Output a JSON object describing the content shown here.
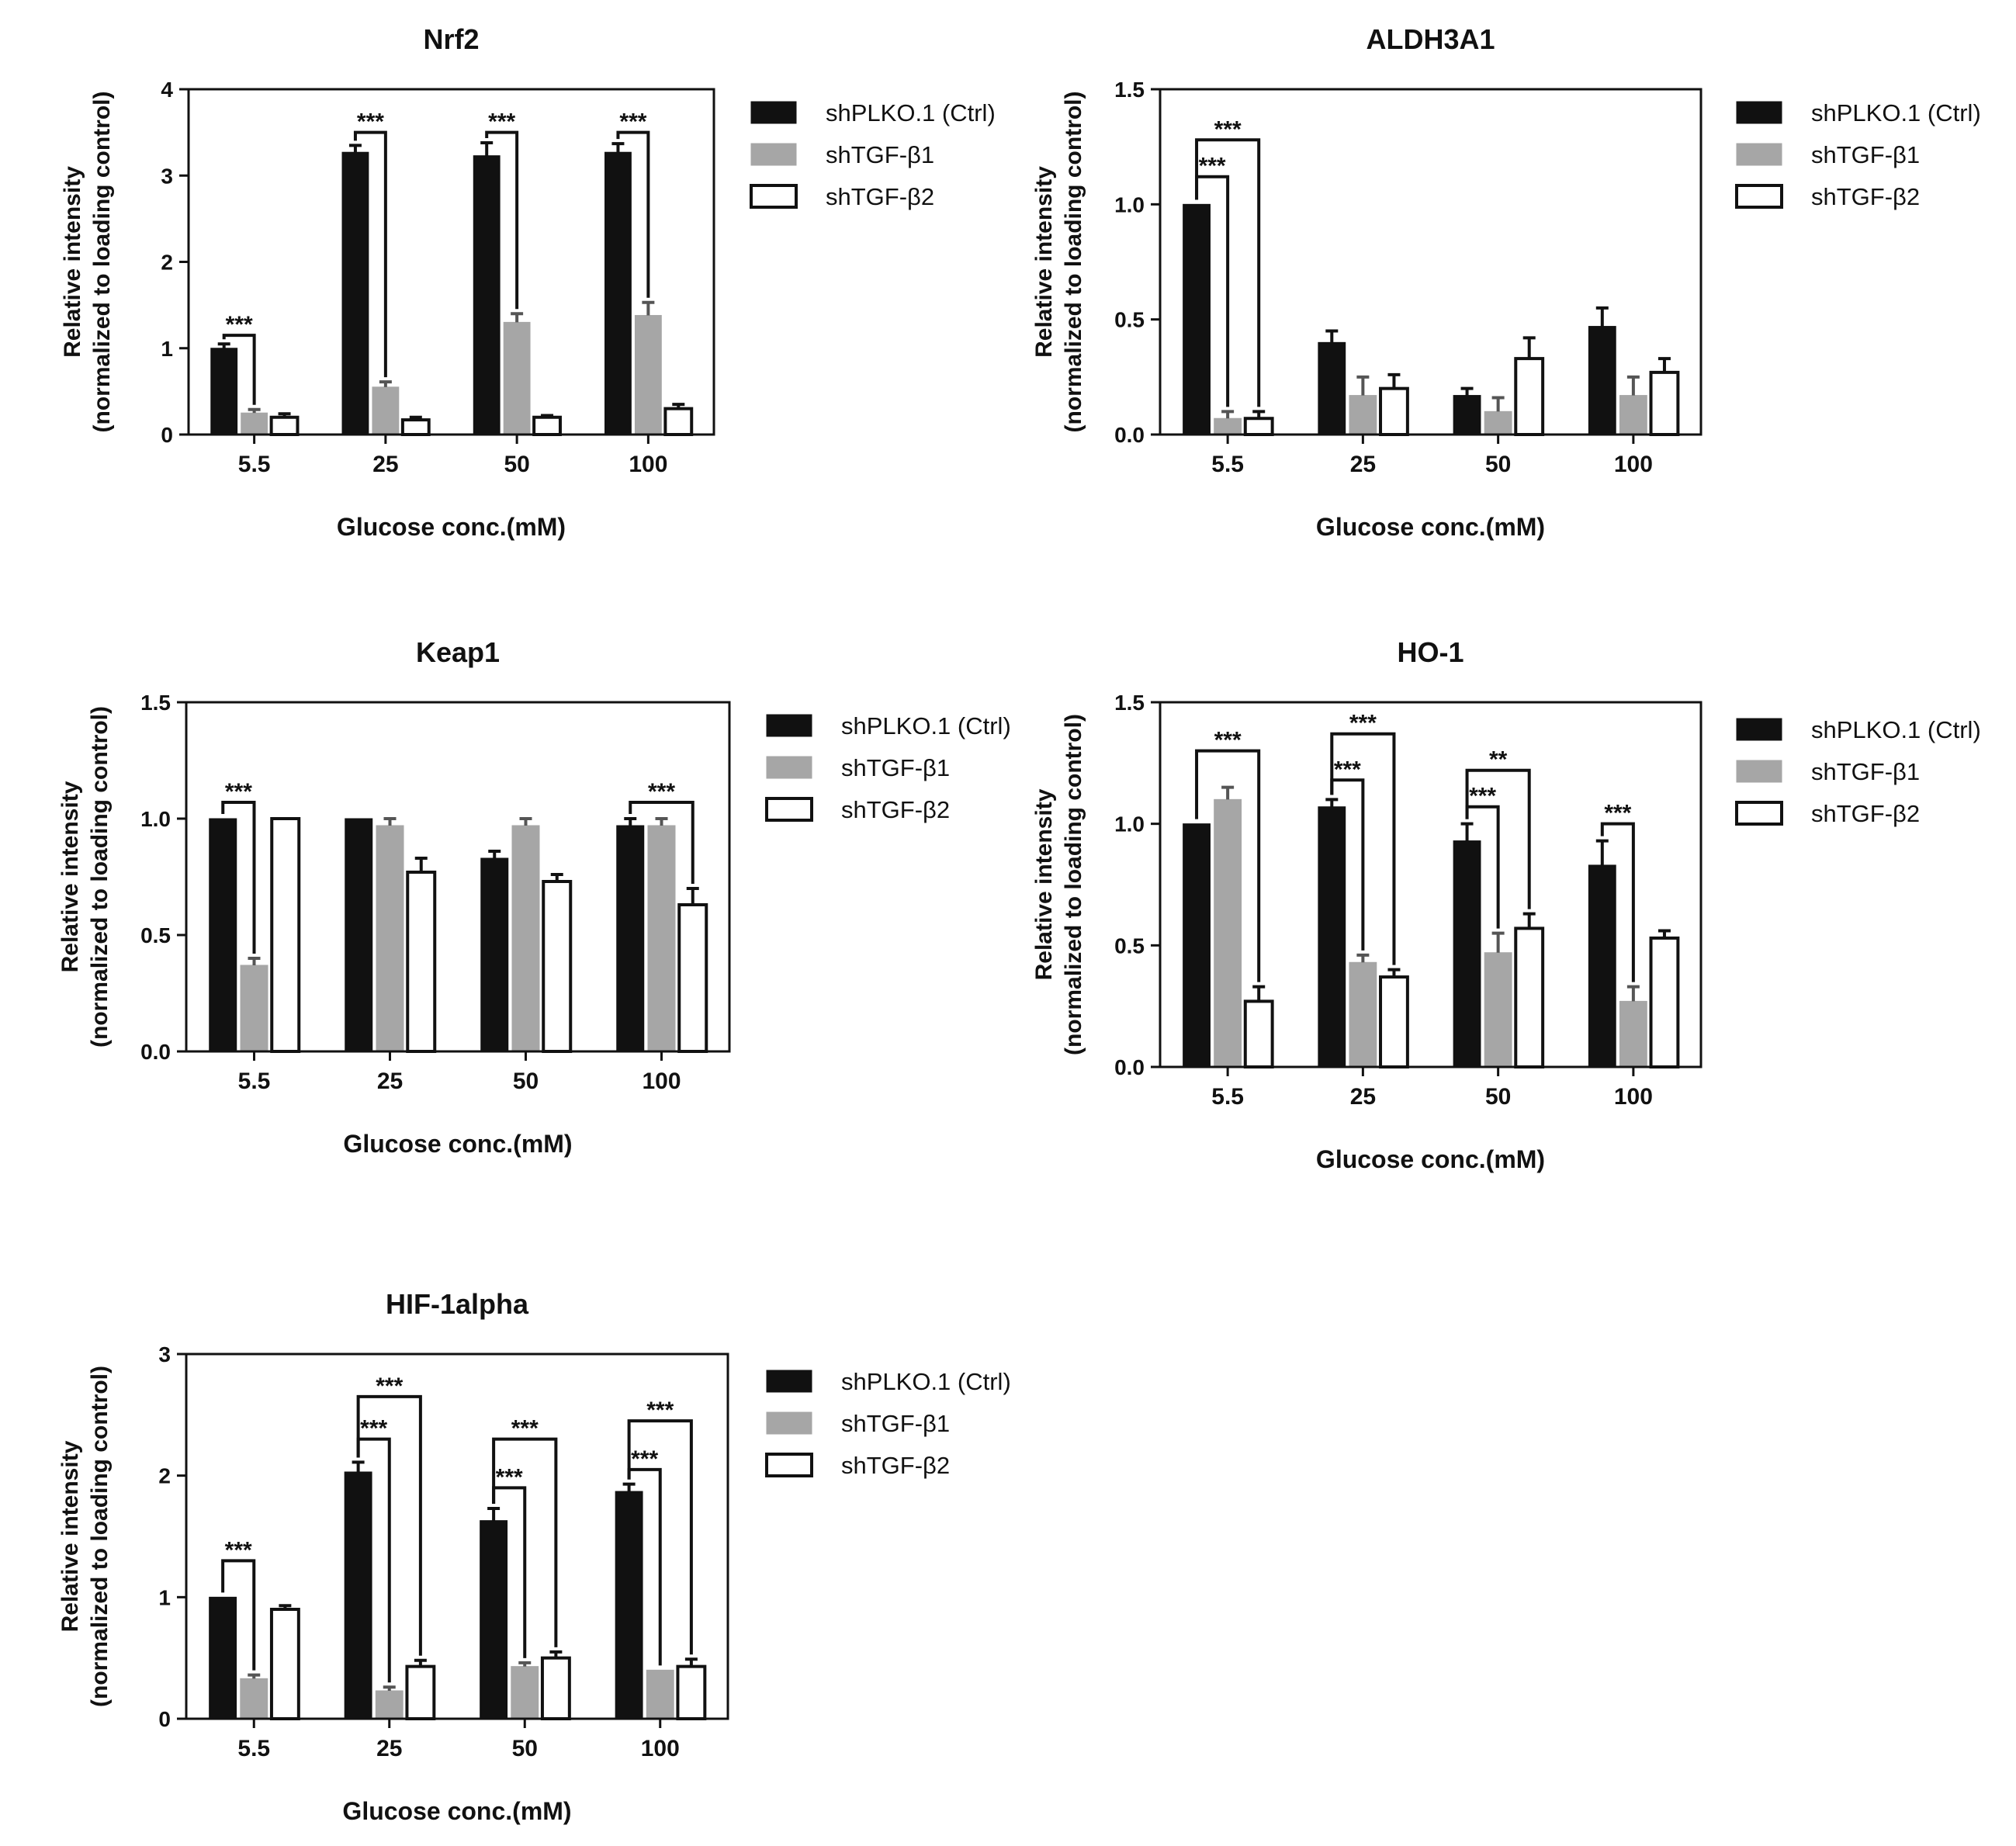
{
  "figure": {
    "x_label": "Glucose conc.(mM)",
    "y_label_line1": "Relative intensity",
    "y_label_line2": "(normalized to loading control)",
    "legend": [
      "shPLKO.1 (Ctrl)",
      "shTGF-β1",
      "shTGF-β2"
    ],
    "colors": {
      "ctrl": "#111111",
      "tgfb1": "#a6a6a6",
      "tgfb2": "#ffffff",
      "outline": "#111111"
    }
  },
  "chart_data": [
    {
      "type": "bar",
      "title": "Nrf2",
      "categories": [
        "5.5",
        "25",
        "50",
        "100"
      ],
      "xlabel": "Glucose conc.(mM)",
      "ylabel": "Relative intensity (normalized to loading control)",
      "ylim": [
        0,
        4
      ],
      "yticks": [
        "0",
        "1",
        "2",
        "3",
        "4"
      ],
      "series": [
        {
          "name": "shPLKO.1 (Ctrl)",
          "values": [
            1.0,
            3.27,
            3.23,
            3.27
          ],
          "errors": [
            0.05,
            0.08,
            0.15,
            0.1
          ]
        },
        {
          "name": "shTGF-β1",
          "values": [
            0.25,
            0.55,
            1.3,
            1.38
          ],
          "errors": [
            0.04,
            0.06,
            0.1,
            0.15
          ]
        },
        {
          "name": "shTGF-β2",
          "values": [
            0.2,
            0.17,
            0.2,
            0.3
          ],
          "errors": [
            0.04,
            0.03,
            0.02,
            0.05
          ]
        }
      ],
      "significance": [
        {
          "group": 0,
          "from": 0,
          "to": 1,
          "label": "***",
          "level": 1.15
        },
        {
          "group": 1,
          "from": 0,
          "to": 1,
          "label": "***",
          "level": 3.5
        },
        {
          "group": 2,
          "from": 0,
          "to": 1,
          "label": "***",
          "level": 3.5
        },
        {
          "group": 3,
          "from": 0,
          "to": 1,
          "label": "***",
          "level": 3.5
        }
      ]
    },
    {
      "type": "bar",
      "title": "ALDH3A1",
      "categories": [
        "5.5",
        "25",
        "50",
        "100"
      ],
      "xlabel": "Glucose conc.(mM)",
      "ylabel": "Relative intensity (normalized to loading control)",
      "ylim": [
        0,
        1.5
      ],
      "yticks": [
        "0.0",
        "0.5",
        "1.0",
        "1.5"
      ],
      "series": [
        {
          "name": "shPLKO.1 (Ctrl)",
          "values": [
            1.0,
            0.4,
            0.17,
            0.47
          ],
          "errors": [
            0.0,
            0.05,
            0.03,
            0.08
          ]
        },
        {
          "name": "shTGF-β1",
          "values": [
            0.07,
            0.17,
            0.1,
            0.17
          ],
          "errors": [
            0.03,
            0.08,
            0.06,
            0.08
          ]
        },
        {
          "name": "shTGF-β2",
          "values": [
            0.07,
            0.2,
            0.33,
            0.27
          ],
          "errors": [
            0.03,
            0.06,
            0.09,
            0.06
          ]
        }
      ],
      "significance": [
        {
          "group": 0,
          "from": 0,
          "to": 1,
          "label": "***",
          "level": 1.12
        },
        {
          "group": 0,
          "from": 0,
          "to": 2,
          "label": "***",
          "level": 1.28
        }
      ]
    },
    {
      "type": "bar",
      "title": "Keap1",
      "categories": [
        "5.5",
        "25",
        "50",
        "100"
      ],
      "xlabel": "Glucose conc.(mM)",
      "ylabel": "Relative intensity (normalized to loading control)",
      "ylim": [
        0,
        1.5
      ],
      "yticks": [
        "0.0",
        "0.5",
        "1.0",
        "1.5"
      ],
      "series": [
        {
          "name": "shPLKO.1 (Ctrl)",
          "values": [
            1.0,
            1.0,
            0.83,
            0.97
          ],
          "errors": [
            0.0,
            0.0,
            0.03,
            0.03
          ]
        },
        {
          "name": "shTGF-β1",
          "values": [
            0.37,
            0.97,
            0.97,
            0.97
          ],
          "errors": [
            0.03,
            0.03,
            0.03,
            0.03
          ]
        },
        {
          "name": "shTGF-β2",
          "values": [
            1.0,
            0.77,
            0.73,
            0.63
          ],
          "errors": [
            0.0,
            0.06,
            0.03,
            0.07
          ]
        }
      ],
      "significance": [
        {
          "group": 0,
          "from": 0,
          "to": 1,
          "label": "***",
          "level": 1.07
        },
        {
          "group": 3,
          "from": 0,
          "to": 2,
          "label": "***",
          "level": 1.07
        }
      ]
    },
    {
      "type": "bar",
      "title": "HO-1",
      "categories": [
        "5.5",
        "25",
        "50",
        "100"
      ],
      "xlabel": "Glucose conc.(mM)",
      "ylabel": "Relative intensity (normalized to loading control)",
      "ylim": [
        0,
        1.5
      ],
      "yticks": [
        "0.0",
        "0.5",
        "1.0",
        "1.5"
      ],
      "series": [
        {
          "name": "shPLKO.1 (Ctrl)",
          "values": [
            1.0,
            1.07,
            0.93,
            0.83
          ],
          "errors": [
            0.0,
            0.03,
            0.07,
            0.1
          ]
        },
        {
          "name": "shTGF-β1",
          "values": [
            1.1,
            0.43,
            0.47,
            0.27
          ],
          "errors": [
            0.05,
            0.03,
            0.08,
            0.06
          ]
        },
        {
          "name": "shTGF-β2",
          "values": [
            0.27,
            0.37,
            0.57,
            0.53
          ],
          "errors": [
            0.06,
            0.03,
            0.06,
            0.03
          ]
        }
      ],
      "significance": [
        {
          "group": 0,
          "from": 0,
          "to": 2,
          "label": "***",
          "level": 1.3
        },
        {
          "group": 1,
          "from": 0,
          "to": 1,
          "label": "***",
          "level": 1.18
        },
        {
          "group": 1,
          "from": 0,
          "to": 2,
          "label": "***",
          "level": 1.37
        },
        {
          "group": 2,
          "from": 0,
          "to": 1,
          "label": "***",
          "level": 1.07
        },
        {
          "group": 2,
          "from": 0,
          "to": 2,
          "label": "**",
          "level": 1.22
        },
        {
          "group": 3,
          "from": 0,
          "to": 1,
          "label": "***",
          "level": 1.0
        }
      ]
    },
    {
      "type": "bar",
      "title": "HIF-1alpha",
      "categories": [
        "5.5",
        "25",
        "50",
        "100"
      ],
      "xlabel": "Glucose conc.(mM)",
      "ylabel": "Relative intensity (normalized to loading control)",
      "ylim": [
        0,
        3
      ],
      "yticks": [
        "0",
        "1",
        "2",
        "3"
      ],
      "series": [
        {
          "name": "shPLKO.1 (Ctrl)",
          "values": [
            1.0,
            2.03,
            1.63,
            1.87
          ],
          "errors": [
            0.0,
            0.08,
            0.1,
            0.06
          ]
        },
        {
          "name": "shTGF-β1",
          "values": [
            0.33,
            0.23,
            0.43,
            0.4
          ],
          "errors": [
            0.03,
            0.03,
            0.03,
            0.0
          ]
        },
        {
          "name": "shTGF-β2",
          "values": [
            0.9,
            0.43,
            0.5,
            0.43
          ],
          "errors": [
            0.03,
            0.05,
            0.05,
            0.06
          ]
        }
      ],
      "significance": [
        {
          "group": 0,
          "from": 0,
          "to": 1,
          "label": "***",
          "level": 1.3
        },
        {
          "group": 1,
          "from": 0,
          "to": 1,
          "label": "***",
          "level": 2.3
        },
        {
          "group": 1,
          "from": 0,
          "to": 2,
          "label": "***",
          "level": 2.65
        },
        {
          "group": 2,
          "from": 0,
          "to": 1,
          "label": "***",
          "level": 1.9
        },
        {
          "group": 2,
          "from": 0,
          "to": 2,
          "label": "***",
          "level": 2.3
        },
        {
          "group": 3,
          "from": 0,
          "to": 1,
          "label": "***",
          "level": 2.05
        },
        {
          "group": 3,
          "from": 0,
          "to": 2,
          "label": "***",
          "level": 2.45
        }
      ]
    }
  ]
}
